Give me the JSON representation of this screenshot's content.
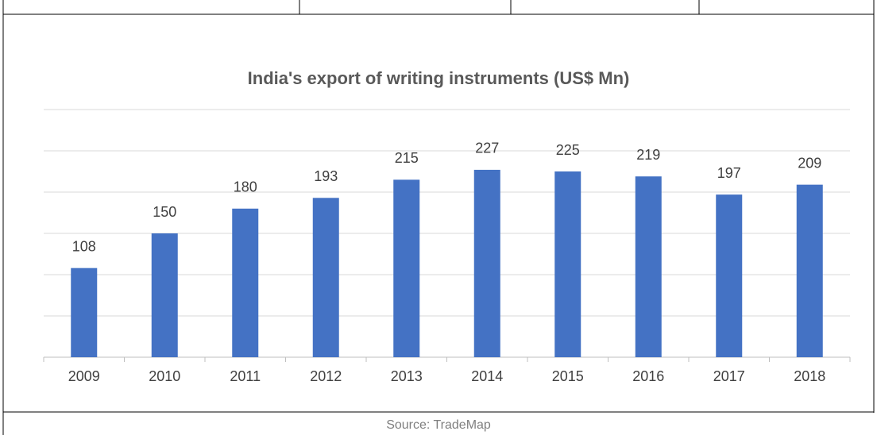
{
  "chart_data": {
    "type": "bar",
    "title": "India's export of writing instruments (US$ Mn)",
    "categories": [
      "2009",
      "2010",
      "2011",
      "2012",
      "2013",
      "2014",
      "2015",
      "2016",
      "2017",
      "2018"
    ],
    "values": [
      108,
      150,
      180,
      193,
      215,
      227,
      225,
      219,
      197,
      209
    ],
    "color": "#4472c4",
    "ylim": [
      0,
      300
    ],
    "yticks": [
      0,
      50,
      100,
      150,
      200,
      250,
      300
    ],
    "grid": true
  },
  "source": "Source: TradeMap"
}
